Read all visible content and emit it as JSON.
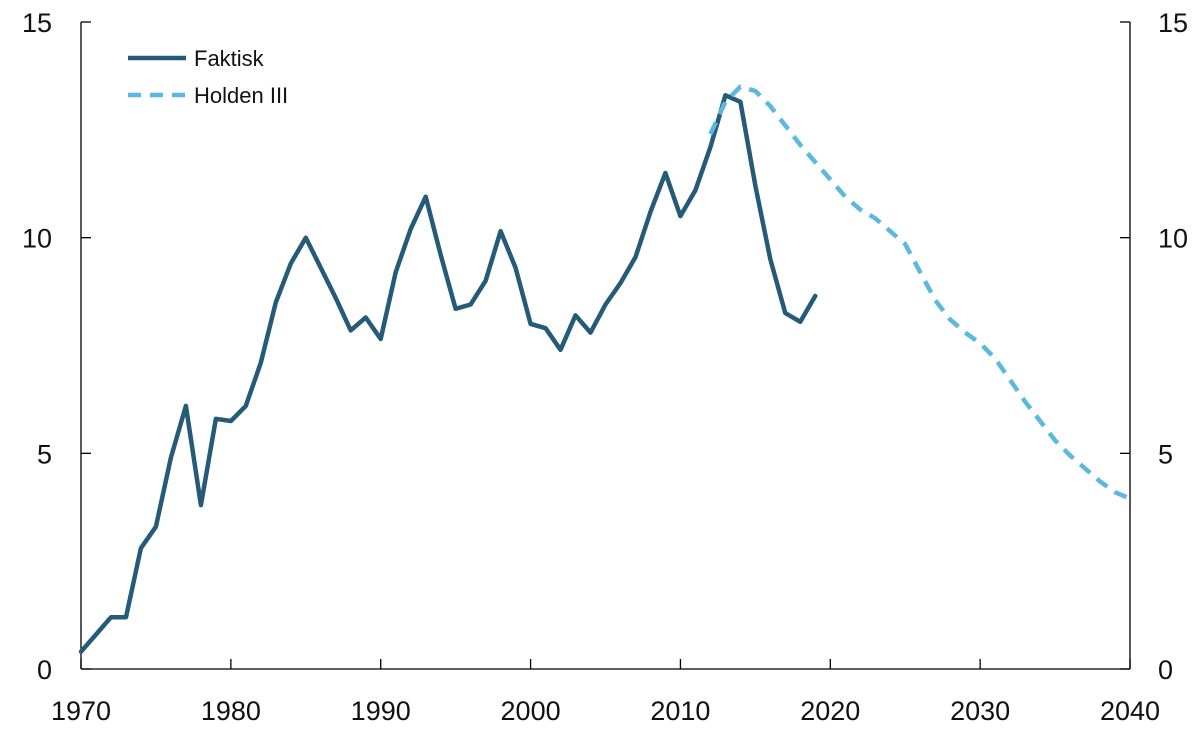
{
  "chart_data": {
    "type": "line",
    "title": "",
    "xlabel": "",
    "ylabel": "",
    "xlim": [
      1970,
      2040
    ],
    "ylim": [
      0,
      15
    ],
    "x_ticks": [
      1970,
      1980,
      1990,
      2000,
      2010,
      2020,
      2030,
      2040
    ],
    "y_ticks": [
      0,
      5,
      10,
      15
    ],
    "y_axis_right": true,
    "grid": false,
    "legend_position": "top-left",
    "series": [
      {
        "name": "Faktisk",
        "color": "#255A78",
        "style": "solid",
        "points": [
          [
            1970,
            0.4
          ],
          [
            1971,
            0.8
          ],
          [
            1972,
            1.2
          ],
          [
            1973,
            1.2
          ],
          [
            1974,
            2.8
          ],
          [
            1975,
            3.3
          ],
          [
            1976,
            4.9
          ],
          [
            1977,
            6.1
          ],
          [
            1978,
            3.8
          ],
          [
            1979,
            5.8
          ],
          [
            1980,
            5.75
          ],
          [
            1981,
            6.1
          ],
          [
            1982,
            7.1
          ],
          [
            1983,
            8.5
          ],
          [
            1984,
            9.4
          ],
          [
            1985,
            10.0
          ],
          [
            1986,
            9.3
          ],
          [
            1987,
            8.6
          ],
          [
            1988,
            7.85
          ],
          [
            1989,
            8.15
          ],
          [
            1990,
            7.65
          ],
          [
            1991,
            9.2
          ],
          [
            1992,
            10.2
          ],
          [
            1993,
            10.95
          ],
          [
            1994,
            9.6
          ],
          [
            1995,
            8.35
          ],
          [
            1996,
            8.45
          ],
          [
            1997,
            9.0
          ],
          [
            1998,
            10.15
          ],
          [
            1999,
            9.3
          ],
          [
            2000,
            8.0
          ],
          [
            2001,
            7.9
          ],
          [
            2002,
            7.4
          ],
          [
            2003,
            8.2
          ],
          [
            2004,
            7.8
          ],
          [
            2005,
            8.45
          ],
          [
            2006,
            8.95
          ],
          [
            2007,
            9.55
          ],
          [
            2008,
            10.6
          ],
          [
            2009,
            11.5
          ],
          [
            2010,
            10.5
          ],
          [
            2011,
            11.1
          ],
          [
            2012,
            12.1
          ],
          [
            2013,
            13.3
          ],
          [
            2014,
            13.15
          ],
          [
            2015,
            11.2
          ],
          [
            2016,
            9.5
          ],
          [
            2017,
            8.25
          ],
          [
            2018,
            8.05
          ],
          [
            2019,
            8.65
          ]
        ]
      },
      {
        "name": "Holden III",
        "color": "#5BB8DE",
        "style": "dashed",
        "points": [
          [
            2012,
            12.4
          ],
          [
            2013,
            13.15
          ],
          [
            2014,
            13.5
          ],
          [
            2015,
            13.4
          ],
          [
            2016,
            13.05
          ],
          [
            2017,
            12.6
          ],
          [
            2018,
            12.15
          ],
          [
            2019,
            11.75
          ],
          [
            2020,
            11.35
          ],
          [
            2021,
            10.95
          ],
          [
            2022,
            10.65
          ],
          [
            2023,
            10.45
          ],
          [
            2024,
            10.15
          ],
          [
            2025,
            9.85
          ],
          [
            2026,
            9.2
          ],
          [
            2027,
            8.55
          ],
          [
            2028,
            8.1
          ],
          [
            2029,
            7.8
          ],
          [
            2030,
            7.55
          ],
          [
            2031,
            7.2
          ],
          [
            2032,
            6.7
          ],
          [
            2033,
            6.2
          ],
          [
            2034,
            5.75
          ],
          [
            2035,
            5.3
          ],
          [
            2036,
            4.95
          ],
          [
            2037,
            4.65
          ],
          [
            2038,
            4.35
          ],
          [
            2039,
            4.1
          ],
          [
            2040,
            3.95
          ]
        ]
      }
    ]
  }
}
